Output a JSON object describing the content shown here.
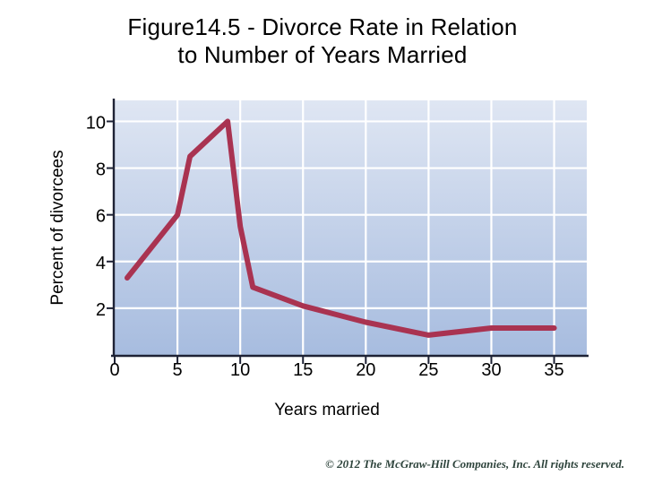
{
  "slide": {
    "title_lines": [
      "Figure14.5 - Divorce Rate in Relation",
      "to Number of Years Married"
    ]
  },
  "footer": {
    "copyright": "© 2012 The McGraw-Hill Companies, Inc. All rights reserved."
  },
  "chart_data": {
    "type": "line",
    "title": "Figure14.5 - Divorce Rate in Relation to Number of Years Married",
    "xlabel": "Years married",
    "ylabel": "Percent of divorcees",
    "x": [
      1,
      5,
      6,
      9,
      10,
      11,
      15,
      20,
      25,
      30,
      35
    ],
    "y": [
      3.3,
      6.0,
      8.5,
      10.0,
      5.5,
      2.9,
      2.1,
      1.4,
      0.85,
      1.15,
      1.15
    ],
    "x_ticks": [
      0,
      5,
      10,
      15,
      20,
      25,
      30,
      35
    ],
    "y_ticks": [
      2,
      4,
      6,
      8,
      10
    ],
    "xlim": [
      0,
      37.6
    ],
    "ylim": [
      0,
      10.9
    ],
    "grid": true,
    "legend": "none",
    "line_color": "#a93351",
    "line_width": 6,
    "axis_color": "#1e2235",
    "gridline_color": "#ffffff",
    "tick_label_color": "#000000",
    "plot_bg_top": "#dfe6f3",
    "plot_bg_bottom": "#a7bcdf"
  }
}
